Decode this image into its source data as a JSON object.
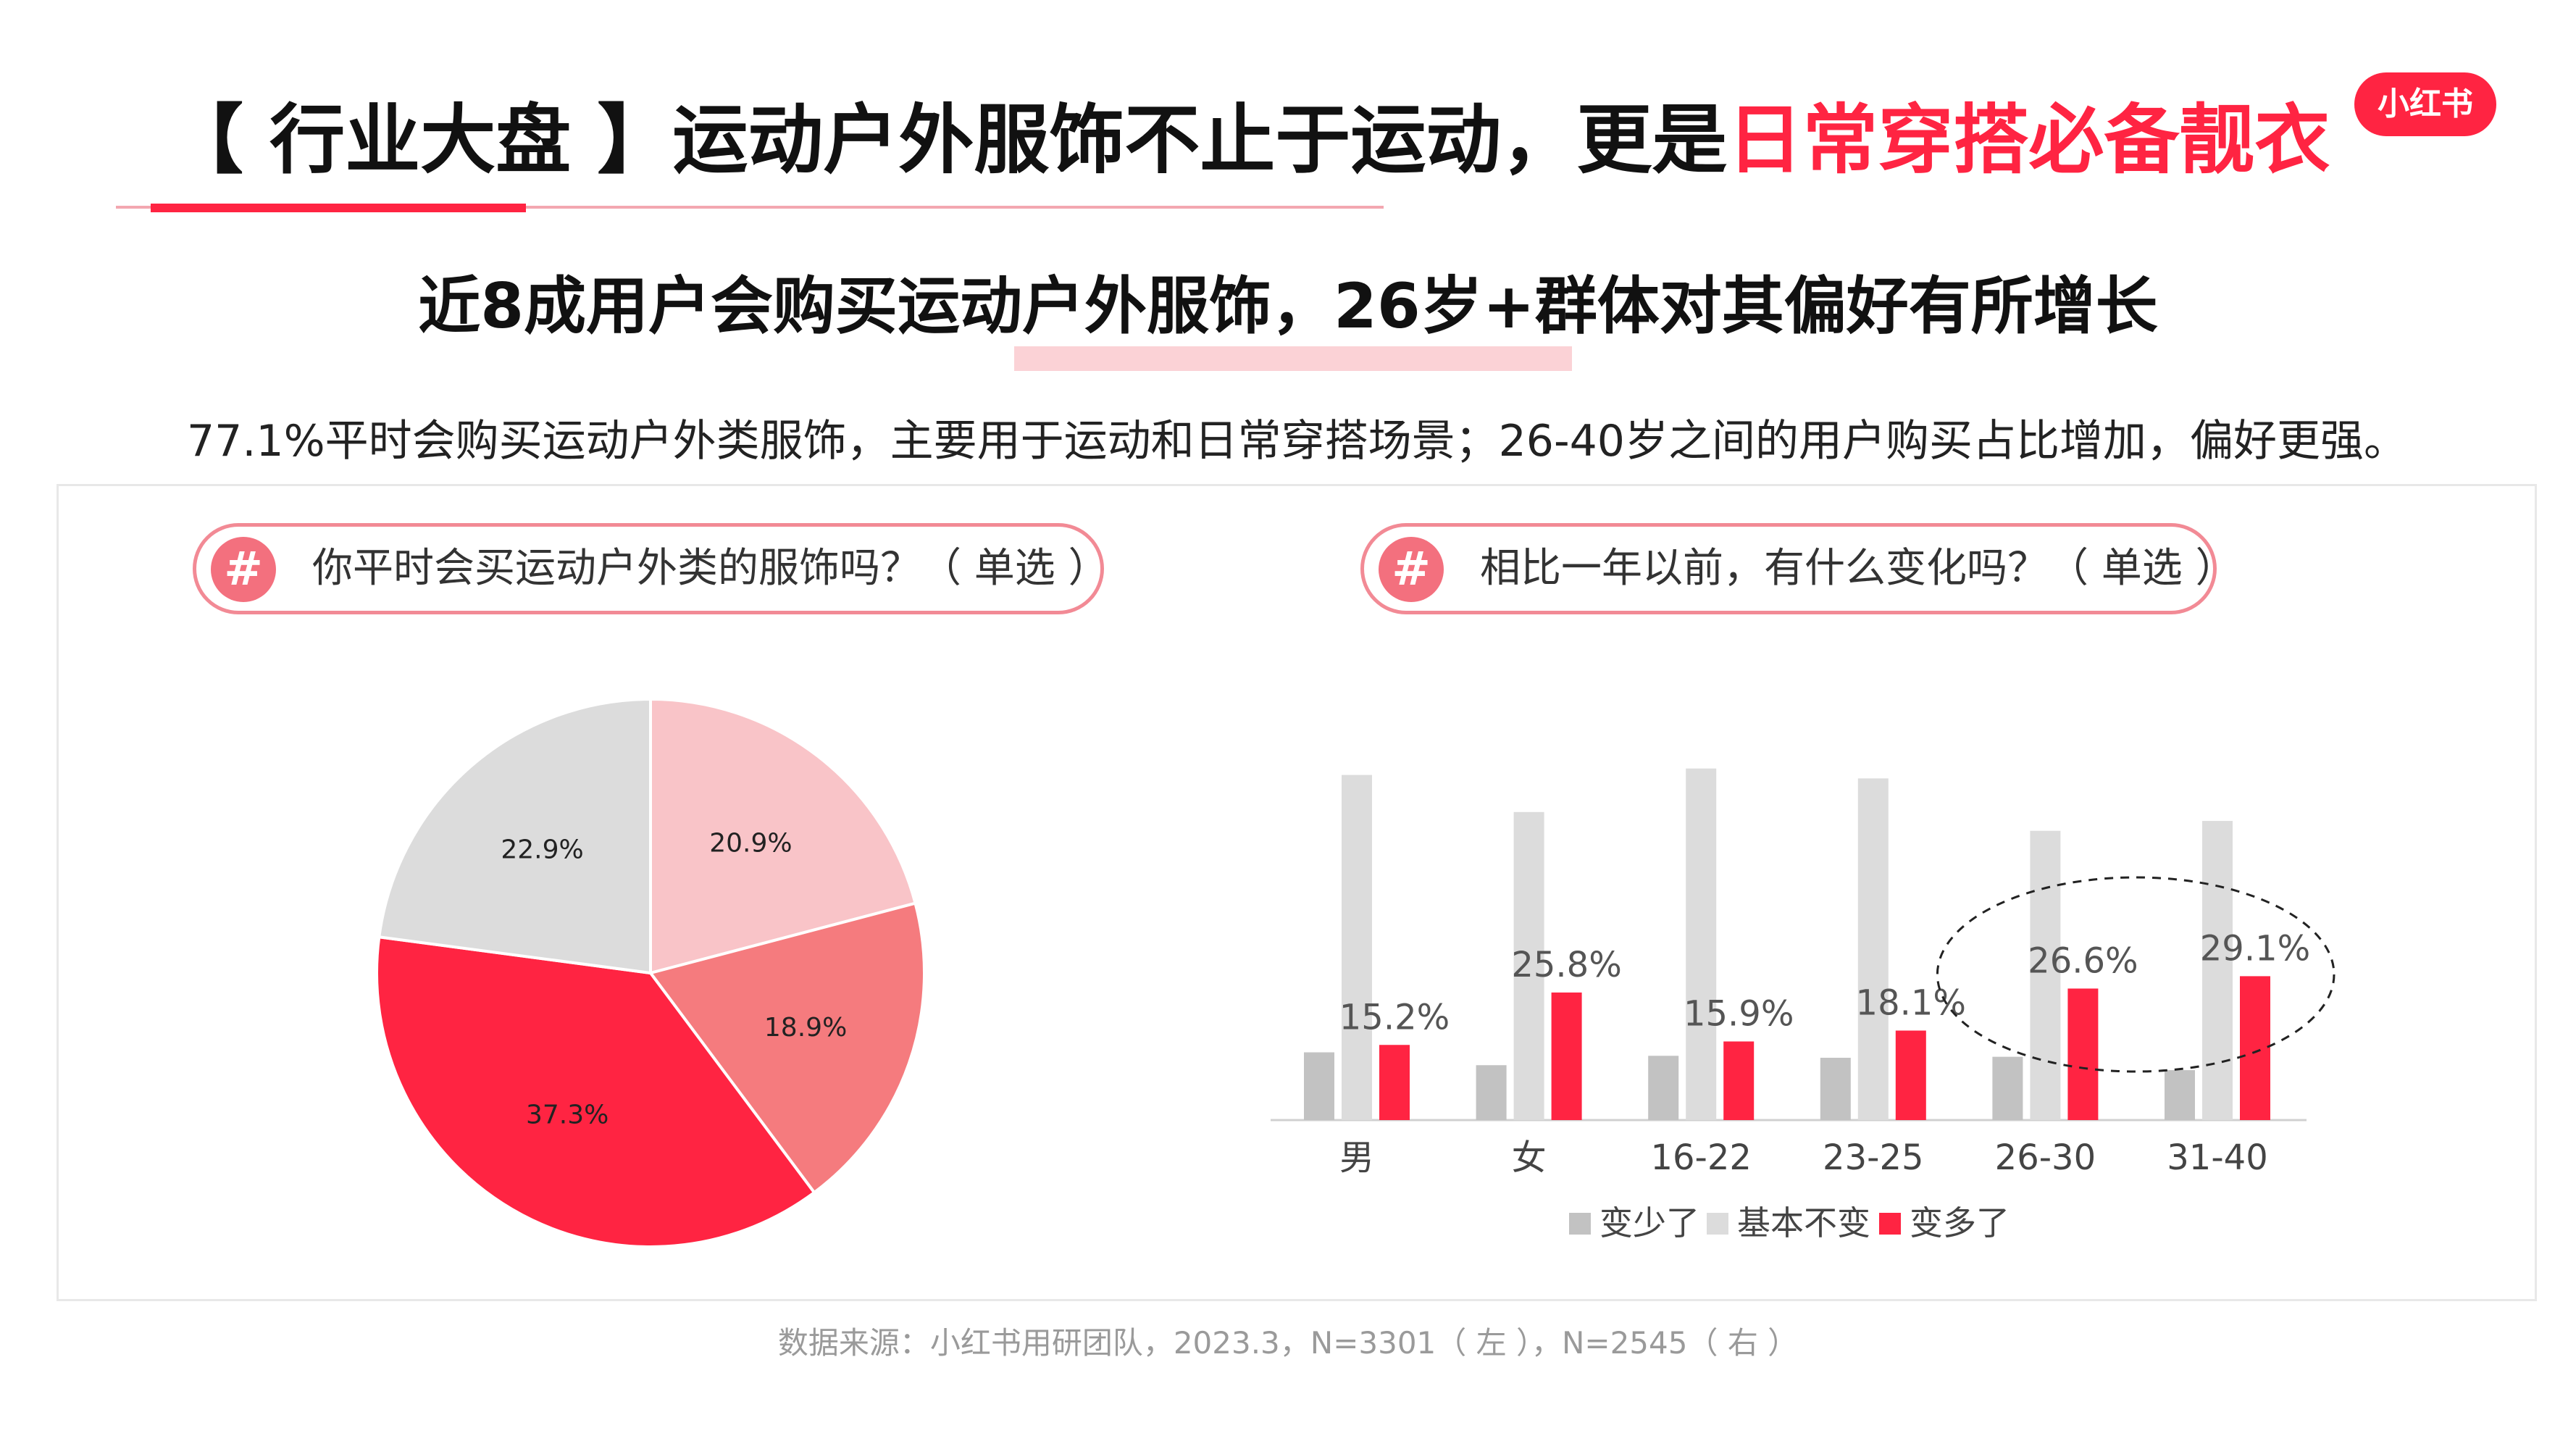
{
  "header": {
    "title_prefix": "【 行业大盘 】运动户外服饰不止于运动，更是",
    "title_highlight": "日常穿搭必备靓衣",
    "logo": "小红书",
    "subtitle": "近8成用户会购买运动户外服饰，26岁+群体对其偏好有所增长",
    "description": "77.1%平时会购买运动户外类服饰，主要用于运动和日常穿搭场景；26-40岁之间的用户购买占比增加，偏好更强。"
  },
  "questions": {
    "left": "你平时会买运动户外类的服饰吗？（ 单选 ）",
    "right": "相比一年以前，有什么变化吗？（ 单选 ）",
    "hash_symbol": "#"
  },
  "source": "数据来源：小红书用研团队，2023.3，N=3301（ 左 ），N=2545（ 右 ）",
  "colors": {
    "accent": "#ff2442",
    "pie": [
      "#f9c4c8",
      "#f57b7e",
      "#ff2442",
      "#dcdcdc"
    ],
    "bars": [
      "#c2c2c2",
      "#dcdcdc",
      "#ff2442"
    ]
  },
  "chart_data": [
    {
      "type": "pie",
      "start_angle_deg": 0,
      "direction": "clockwise",
      "slices": [
        {
          "label": "20.9%",
          "value": 20.9
        },
        {
          "label": "18.9%",
          "value": 18.9
        },
        {
          "label": "37.3%",
          "value": 37.3
        },
        {
          "label": "22.9%",
          "value": 22.9
        }
      ]
    },
    {
      "type": "bar",
      "categories": [
        "男",
        "女",
        "16-22",
        "23-25",
        "26-30",
        "31-40"
      ],
      "series": [
        {
          "name": "变少了",
          "values": [
            13.7,
            11.1,
            13.0,
            12.6,
            12.8,
            10.1
          ]
        },
        {
          "name": "基本不变",
          "values": [
            69.8,
            62.3,
            71.1,
            69.1,
            58.5,
            60.5
          ]
        },
        {
          "name": "变多了",
          "values": [
            15.2,
            25.8,
            15.9,
            18.1,
            26.6,
            29.1
          ]
        }
      ],
      "labels": [
        "15.2%",
        "25.8%",
        "15.9%",
        "18.1%",
        "26.6%",
        "29.1%"
      ],
      "highlighted_categories": [
        "26-30",
        "31-40"
      ],
      "ylim": [
        0,
        80
      ]
    }
  ]
}
